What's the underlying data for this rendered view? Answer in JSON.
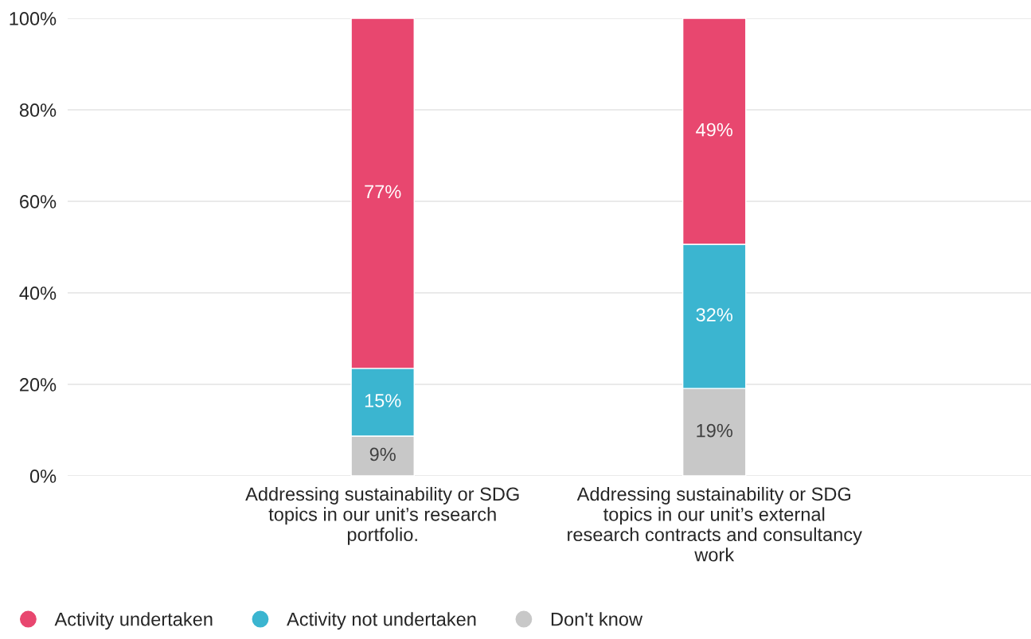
{
  "chart_data": {
    "type": "bar",
    "stacked": true,
    "categories": [
      "Addressing sustainability or SDG topics in our unit’s research portfolio.",
      "Addressing sustainability or SDG topics in our unit’s external research contracts and consultancy work"
    ],
    "series": [
      {
        "name": "Don't know",
        "color": "#c8c8c8",
        "values": [
          8.7,
          19.1
        ],
        "value_labels": [
          "9%",
          "19%"
        ]
      },
      {
        "name": "Activity not undertaken",
        "color": "#3bb5d0",
        "values": [
          14.8,
          31.5
        ],
        "value_labels": [
          "15%",
          "32%"
        ]
      },
      {
        "name": "Activity undertaken",
        "color": "#e8476f",
        "values": [
          76.5,
          49.4
        ],
        "value_labels": [
          "77%",
          "49%"
        ]
      }
    ],
    "ylim": [
      0,
      100
    ],
    "yticks": [
      {
        "value": 0,
        "label": "0%"
      },
      {
        "value": 20,
        "label": "20%"
      },
      {
        "value": 40,
        "label": "40%"
      },
      {
        "value": 60,
        "label": "60%"
      },
      {
        "value": 80,
        "label": "80%"
      },
      {
        "value": 100,
        "label": "100%"
      }
    ],
    "grid": "y",
    "legend": "bottom left"
  }
}
